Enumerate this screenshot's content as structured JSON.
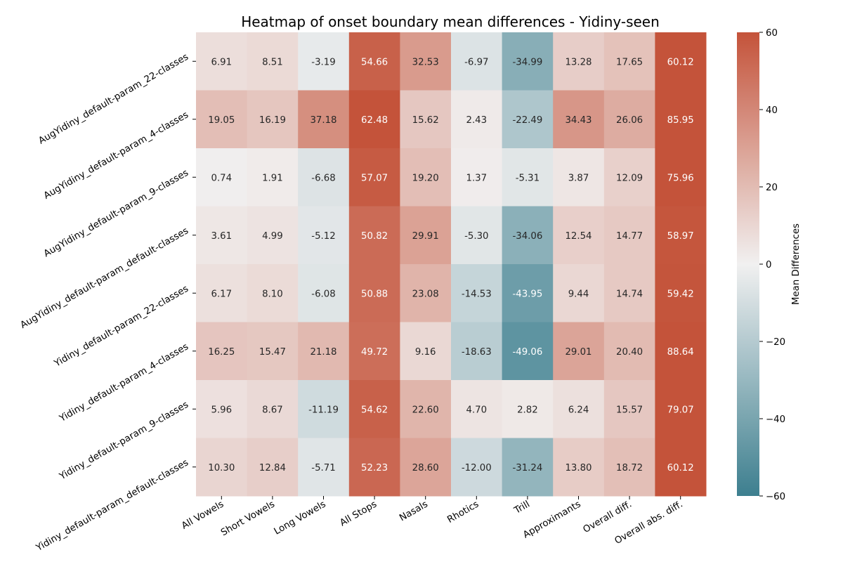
{
  "chart_data": {
    "type": "heatmap",
    "title": "Heatmap of onset boundary mean differences - Yidiny-seen",
    "columns": [
      "All Vowels",
      "Short Vowels",
      "Long Vowels",
      "All Stops",
      "Nasals",
      "Rhotics",
      "Trill",
      "Approximants",
      "Overall diff.",
      "Overall abs. diff."
    ],
    "rows": [
      "AugYidiny_default-param_22-classes",
      "AugYidiny_default-param_4-classes",
      "AugYidiny_default-param_9-classes",
      "AugYidiny_default-param_default-classes",
      "Yidiny_default-param_22-classes",
      "Yidiny_default-param_4-classes",
      "Yidiny_default-param_9-classes",
      "Yidiny_default-param_default-classes"
    ],
    "values": [
      [
        6.91,
        8.51,
        -3.19,
        54.66,
        32.53,
        -6.97,
        -34.99,
        13.28,
        17.65,
        60.12
      ],
      [
        19.05,
        16.19,
        37.18,
        62.48,
        15.62,
        2.43,
        -22.49,
        34.43,
        26.06,
        85.95
      ],
      [
        0.74,
        1.91,
        -6.68,
        57.07,
        19.2,
        1.37,
        -5.31,
        3.87,
        12.09,
        75.96
      ],
      [
        3.61,
        4.99,
        -5.12,
        50.82,
        29.91,
        -5.3,
        -34.06,
        12.54,
        14.77,
        58.97
      ],
      [
        6.17,
        8.1,
        -6.08,
        50.88,
        23.08,
        -14.53,
        -43.95,
        9.44,
        14.74,
        59.42
      ],
      [
        16.25,
        15.47,
        21.18,
        49.72,
        9.16,
        -18.63,
        -49.06,
        29.01,
        20.4,
        88.64
      ],
      [
        5.96,
        8.67,
        -11.19,
        54.62,
        22.6,
        4.7,
        2.82,
        6.24,
        15.57,
        79.07
      ],
      [
        10.3,
        12.84,
        -5.71,
        52.23,
        28.6,
        -12.0,
        -31.24,
        13.8,
        18.72,
        60.12
      ]
    ],
    "value_range": [
      -60,
      60
    ],
    "colorbar": {
      "label": "Mean Differences",
      "ticks": [
        60,
        40,
        20,
        0,
        -20,
        -40,
        -60
      ],
      "tick_labels": [
        "60",
        "40",
        "20",
        "0",
        "−20",
        "−40",
        "−60"
      ]
    },
    "colors": {
      "negative": "#3d7f8f",
      "neutral": "#f1f0f0",
      "positive": "#c4533a"
    }
  }
}
